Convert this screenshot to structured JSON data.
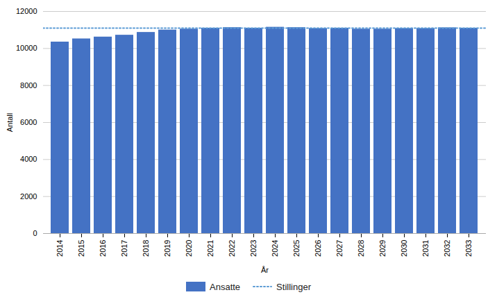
{
  "chart_data": {
    "type": "bar",
    "xlabel": "År",
    "ylabel": "Antall",
    "categories": [
      "2014",
      "2015",
      "2016",
      "2017",
      "2018",
      "2019",
      "2020",
      "2021",
      "2022",
      "2023",
      "2024",
      "2025",
      "2026",
      "2027",
      "2028",
      "2029",
      "2030",
      "2031",
      "2032",
      "2033"
    ],
    "series": [
      {
        "name": "Ansatte",
        "type": "bar",
        "color": "#4472C4",
        "values": [
          10350,
          10520,
          10620,
          10720,
          10870,
          11000,
          11050,
          11100,
          11130,
          11100,
          11150,
          11130,
          11080,
          11100,
          11050,
          11050,
          11080,
          11080,
          11120,
          11100
        ]
      },
      {
        "name": "Stillinger",
        "type": "hline",
        "color": "#5B9BD5",
        "line_style": "dotted",
        "value": 11100
      }
    ],
    "ylim": [
      0,
      12000
    ],
    "yticks": [
      0,
      2000,
      4000,
      6000,
      8000,
      10000,
      12000
    ],
    "grid": true,
    "legend": "bottom"
  }
}
